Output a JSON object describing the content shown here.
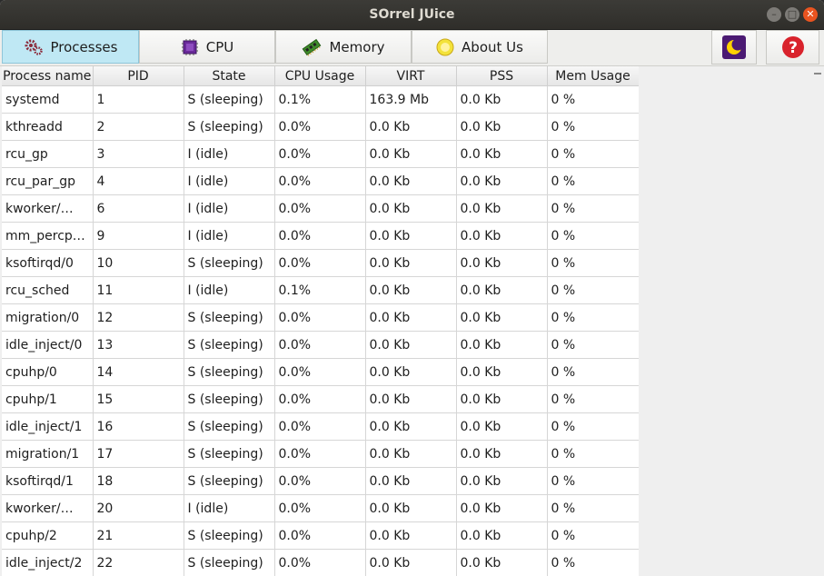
{
  "window": {
    "title": "SOrrel JUice"
  },
  "toolbar": {
    "tabs": [
      {
        "label": "Processes",
        "icon": "gears-icon"
      },
      {
        "label": "CPU",
        "icon": "cpu-chip-icon"
      },
      {
        "label": "Memory",
        "icon": "memory-module-icon"
      },
      {
        "label": "About Us",
        "icon": "info-circle-icon"
      }
    ],
    "theme_icon": "moon-icon",
    "help_icon": "help-icon"
  },
  "table": {
    "columns": [
      "Process name",
      "PID",
      "State",
      "CPU Usage",
      "VIRT",
      "PSS",
      "Mem Usage"
    ],
    "rows": [
      [
        "systemd",
        "1",
        "S (sleeping)",
        "0.1%",
        "163.9 Mb",
        "0.0 Kb",
        "0 %"
      ],
      [
        "kthreadd",
        "2",
        "S (sleeping)",
        "0.0%",
        "0.0 Kb",
        "0.0 Kb",
        "0 %"
      ],
      [
        "rcu_gp",
        "3",
        "I (idle)",
        "0.0%",
        "0.0 Kb",
        "0.0 Kb",
        "0 %"
      ],
      [
        "rcu_par_gp",
        "4",
        "I (idle)",
        "0.0%",
        "0.0 Kb",
        "0.0 Kb",
        "0 %"
      ],
      [
        "kworker/…",
        "6",
        "I (idle)",
        "0.0%",
        "0.0 Kb",
        "0.0 Kb",
        "0 %"
      ],
      [
        "mm_percp…",
        "9",
        "I (idle)",
        "0.0%",
        "0.0 Kb",
        "0.0 Kb",
        "0 %"
      ],
      [
        "ksoftirqd/0",
        "10",
        "S (sleeping)",
        "0.0%",
        "0.0 Kb",
        "0.0 Kb",
        "0 %"
      ],
      [
        "rcu_sched",
        "11",
        "I (idle)",
        "0.1%",
        "0.0 Kb",
        "0.0 Kb",
        "0 %"
      ],
      [
        "migration/0",
        "12",
        "S (sleeping)",
        "0.0%",
        "0.0 Kb",
        "0.0 Kb",
        "0 %"
      ],
      [
        "idle_inject/0",
        "13",
        "S (sleeping)",
        "0.0%",
        "0.0 Kb",
        "0.0 Kb",
        "0 %"
      ],
      [
        "cpuhp/0",
        "14",
        "S (sleeping)",
        "0.0%",
        "0.0 Kb",
        "0.0 Kb",
        "0 %"
      ],
      [
        "cpuhp/1",
        "15",
        "S (sleeping)",
        "0.0%",
        "0.0 Kb",
        "0.0 Kb",
        "0 %"
      ],
      [
        "idle_inject/1",
        "16",
        "S (sleeping)",
        "0.0%",
        "0.0 Kb",
        "0.0 Kb",
        "0 %"
      ],
      [
        "migration/1",
        "17",
        "S (sleeping)",
        "0.0%",
        "0.0 Kb",
        "0.0 Kb",
        "0 %"
      ],
      [
        "ksoftirqd/1",
        "18",
        "S (sleeping)",
        "0.0%",
        "0.0 Kb",
        "0.0 Kb",
        "0 %"
      ],
      [
        "kworker/…",
        "20",
        "I (idle)",
        "0.0%",
        "0.0 Kb",
        "0.0 Kb",
        "0 %"
      ],
      [
        "cpuhp/2",
        "21",
        "S (sleeping)",
        "0.0%",
        "0.0 Kb",
        "0.0 Kb",
        "0 %"
      ],
      [
        "idle_inject/2",
        "22",
        "S (sleeping)",
        "0.0%",
        "0.0 Kb",
        "0.0 Kb",
        "0 %"
      ]
    ]
  },
  "colors": {
    "active_tab": "#bfe8f4",
    "close_button": "#e95420",
    "moon_bg": "#4b1a73",
    "moon": "#ffd200",
    "help": "#d9232c"
  }
}
